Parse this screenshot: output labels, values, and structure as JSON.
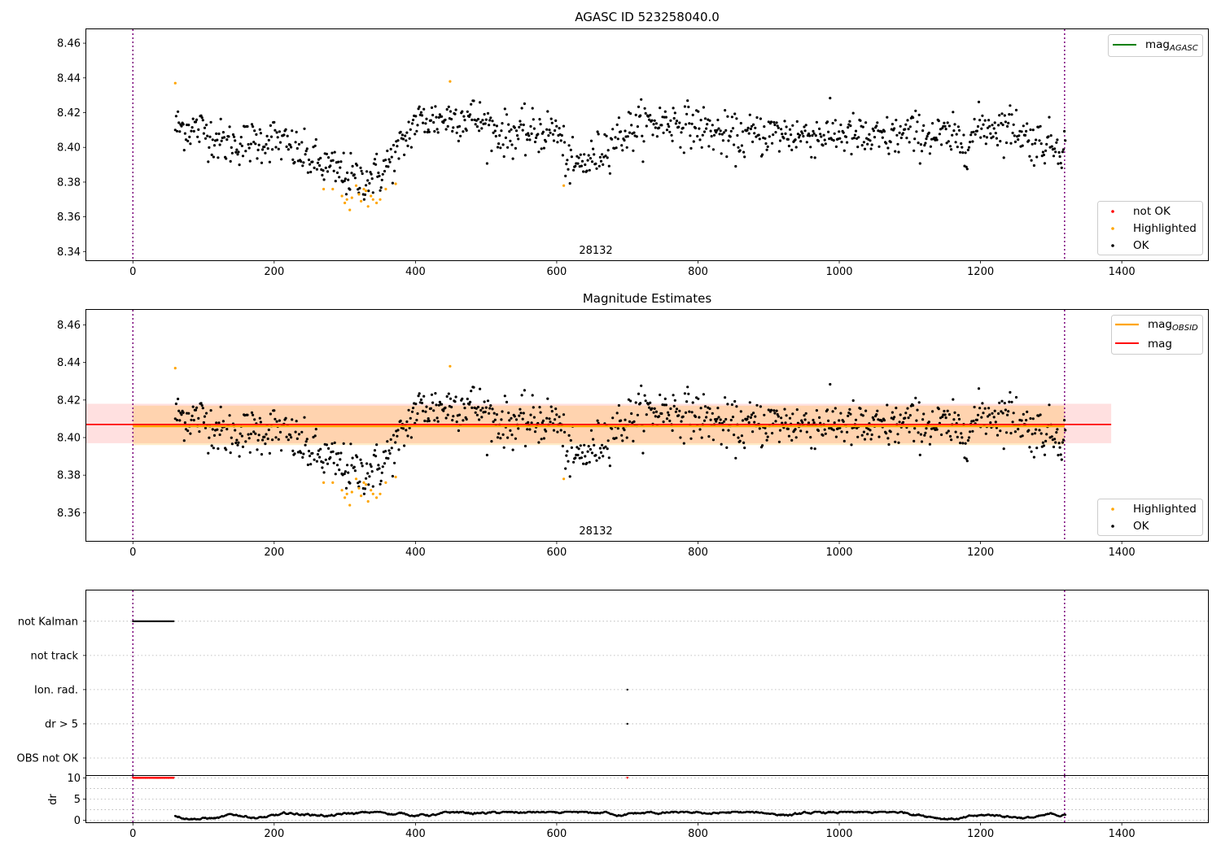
{
  "chart_data": [
    {
      "type": "scatter",
      "title": "AGASC ID 523258040.0",
      "xlim": [
        -66,
        1522
      ],
      "ylim": [
        8.335,
        8.468
      ],
      "xticks": [
        0,
        200,
        400,
        600,
        800,
        1000,
        1200,
        1400
      ],
      "yticks": [
        8.34,
        8.36,
        8.38,
        8.4,
        8.42,
        8.44,
        8.46
      ],
      "ytick_labels": [
        "8.34",
        "8.36",
        "8.38",
        "8.40",
        "8.42",
        "8.44",
        "8.46"
      ],
      "vertical_lines_x": [
        0,
        1319
      ],
      "obsid_label": "28132",
      "obsid_label_x": 660,
      "legend_top": [
        {
          "label": "mag",
          "sub": "AGASC",
          "color": "#008000"
        }
      ],
      "legend_bottom": [
        {
          "label": "not OK",
          "color": "#ff0000"
        },
        {
          "label": "Highlighted",
          "color": "#ffa500"
        },
        {
          "label": "OK",
          "color": "#000000"
        }
      ],
      "series": [
        {
          "name": "OK",
          "color": "#000000",
          "x_start": 60,
          "x_end": 1320,
          "count": 1000,
          "baseline": [
            [
              60,
              8.412
            ],
            [
              100,
              8.41
            ],
            [
              130,
              8.402
            ],
            [
              170,
              8.403
            ],
            [
              200,
              8.405
            ],
            [
              230,
              8.398
            ],
            [
              260,
              8.391
            ],
            [
              290,
              8.386
            ],
            [
              320,
              8.381
            ],
            [
              350,
              8.385
            ],
            [
              380,
              8.4
            ],
            [
              400,
              8.415
            ],
            [
              450,
              8.417
            ],
            [
              480,
              8.418
            ],
            [
              520,
              8.408
            ],
            [
              560,
              8.408
            ],
            [
              600,
              8.41
            ],
            [
              620,
              8.388
            ],
            [
              650,
              8.393
            ],
            [
              680,
              8.405
            ],
            [
              720,
              8.413
            ],
            [
              760,
              8.415
            ],
            [
              800,
              8.412
            ],
            [
              850,
              8.405
            ],
            [
              900,
              8.408
            ],
            [
              950,
              8.407
            ],
            [
              1000,
              8.408
            ],
            [
              1050,
              8.404
            ],
            [
              1100,
              8.408
            ],
            [
              1150,
              8.406
            ],
            [
              1180,
              8.403
            ],
            [
              1200,
              8.412
            ],
            [
              1250,
              8.412
            ],
            [
              1270,
              8.404
            ],
            [
              1320,
              8.401
            ]
          ],
          "scatter_sd": 0.007
        },
        {
          "name": "Highlighted",
          "color": "#ffa500",
          "points": [
            [
              60,
              8.437
            ],
            [
              270,
              8.376
            ],
            [
              283,
              8.376
            ],
            [
              296,
              8.372
            ],
            [
              300,
              8.368
            ],
            [
              303,
              8.37
            ],
            [
              307,
              8.364
            ],
            [
              310,
              8.371
            ],
            [
              316,
              8.378
            ],
            [
              320,
              8.373
            ],
            [
              323,
              8.369
            ],
            [
              327,
              8.376
            ],
            [
              330,
              8.375
            ],
            [
              333,
              8.366
            ],
            [
              337,
              8.372
            ],
            [
              340,
              8.37
            ],
            [
              345,
              8.368
            ],
            [
              350,
              8.37
            ],
            [
              358,
              8.376
            ],
            [
              372,
              8.379
            ],
            [
              449,
              8.438
            ],
            [
              610,
              8.378
            ]
          ]
        }
      ]
    },
    {
      "type": "scatter",
      "title": "Magnitude Estimates",
      "xlim": [
        -66,
        1522
      ],
      "ylim": [
        8.345,
        8.468
      ],
      "xticks": [
        0,
        200,
        400,
        600,
        800,
        1000,
        1200,
        1400
      ],
      "yticks": [
        8.36,
        8.38,
        8.4,
        8.42,
        8.44,
        8.46
      ],
      "ytick_labels": [
        "8.36",
        "8.38",
        "8.40",
        "8.42",
        "8.44",
        "8.46"
      ],
      "vertical_lines_x": [
        0,
        1319
      ],
      "obsid_label": "28132",
      "obsid_label_x": 660,
      "mag_obsid": {
        "value": 8.406,
        "x": [
          0,
          1319
        ],
        "band": [
          8.396,
          8.417
        ],
        "color": "#ffa500"
      },
      "mag": {
        "value": 8.407,
        "x": [
          -66,
          1385
        ],
        "band": [
          8.397,
          8.418
        ],
        "color": "#ff0000"
      },
      "legend_top": [
        {
          "label": "mag",
          "sub": "OBSID",
          "color": "#ffa500"
        },
        {
          "label": "mag",
          "sub": "",
          "color": "#ff0000"
        }
      ],
      "legend_bottom": [
        {
          "label": "Highlighted",
          "color": "#ffa500"
        },
        {
          "label": "OK",
          "color": "#000000"
        }
      ]
    },
    {
      "type": "scatter",
      "title": "",
      "xlim": [
        -66,
        1522
      ],
      "ylim": [
        -0.5,
        4.9
      ],
      "categories": [
        "OBS not OK",
        "dr > 5",
        "Ion. rad.",
        "not track",
        "not Kalman"
      ],
      "vertical_lines_x": [
        0,
        1319
      ],
      "flags": {
        "not Kalman": {
          "x_range": [
            0,
            58
          ]
        },
        "not track": {
          "x_range": null
        },
        "Ion. rad.": {
          "x_points": [
            700
          ]
        },
        "dr > 5": {
          "x_points": [
            700
          ]
        },
        "OBS not OK": {
          "x_range": null
        }
      }
    },
    {
      "type": "scatter",
      "title": "",
      "ylabel": "dr",
      "xlim": [
        -66,
        1522
      ],
      "ylim": [
        -0.5,
        10.5
      ],
      "xticks": [
        0,
        200,
        400,
        600,
        800,
        1000,
        1200,
        1400
      ],
      "yticks": [
        0,
        5,
        10
      ],
      "ytick_labels": [
        "0",
        "5",
        "10"
      ],
      "vertical_lines_x": [
        0,
        1319
      ],
      "clipped_points": {
        "color": "#ff0000",
        "value": 10,
        "x_range": [
          0,
          58
        ],
        "extra_x": [
          700
        ]
      },
      "dr_points": {
        "color": "#000000",
        "x_start": 60,
        "x_end": 1320,
        "typical": 1.0,
        "max": 2.0
      }
    }
  ]
}
